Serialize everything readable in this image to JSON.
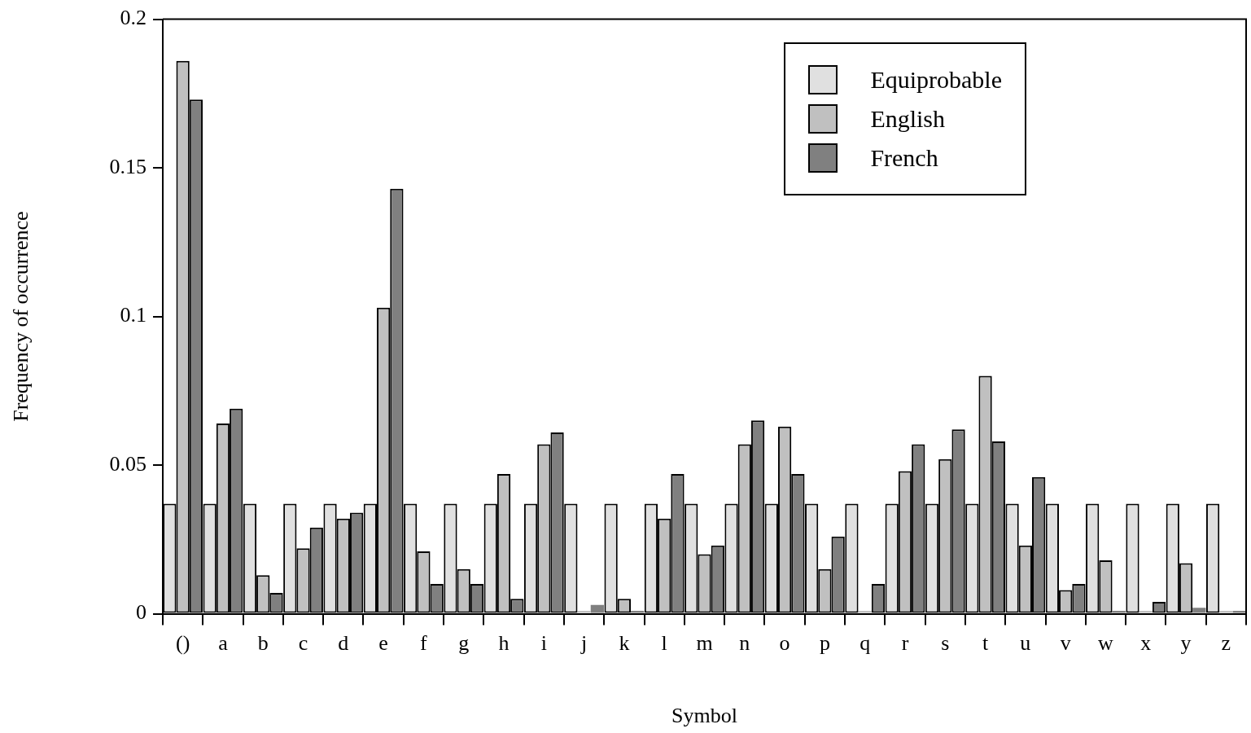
{
  "chart_data": {
    "type": "bar",
    "xlabel": "Symbol",
    "ylabel": "Frequency of occurrence",
    "categories": [
      "()",
      "a",
      "b",
      "c",
      "d",
      "e",
      "f",
      "g",
      "h",
      "i",
      "j",
      "k",
      "l",
      "m",
      "n",
      "o",
      "p",
      "q",
      "r",
      "s",
      "t",
      "u",
      "v",
      "w",
      "x",
      "y",
      "z"
    ],
    "series": [
      {
        "name": "Equiprobable",
        "color": "#e0e0e0",
        "values": [
          0.037,
          0.037,
          0.037,
          0.037,
          0.037,
          0.037,
          0.037,
          0.037,
          0.037,
          0.037,
          0.037,
          0.037,
          0.037,
          0.037,
          0.037,
          0.037,
          0.037,
          0.037,
          0.037,
          0.037,
          0.037,
          0.037,
          0.037,
          0.037,
          0.037,
          0.037,
          0.037
        ]
      },
      {
        "name": "English",
        "color": "#c0c0c0",
        "values": [
          0.186,
          0.064,
          0.013,
          0.022,
          0.032,
          0.103,
          0.021,
          0.015,
          0.047,
          0.057,
          0.001,
          0.005,
          0.032,
          0.02,
          0.057,
          0.063,
          0.015,
          0.001,
          0.048,
          0.052,
          0.08,
          0.023,
          0.008,
          0.018,
          0.001,
          0.017,
          0.001
        ]
      },
      {
        "name": "French",
        "color": "#808080",
        "values": [
          0.173,
          0.069,
          0.007,
          0.029,
          0.034,
          0.143,
          0.01,
          0.01,
          0.005,
          0.061,
          0.003,
          0.001,
          0.047,
          0.023,
          0.065,
          0.047,
          0.026,
          0.01,
          0.057,
          0.062,
          0.058,
          0.046,
          0.01,
          0.001,
          0.004,
          0.002,
          0.001
        ]
      }
    ],
    "ylim": [
      0,
      0.2
    ],
    "yticks": [
      0,
      0.05,
      0.1,
      0.15,
      0.2
    ],
    "legend": "top right"
  }
}
